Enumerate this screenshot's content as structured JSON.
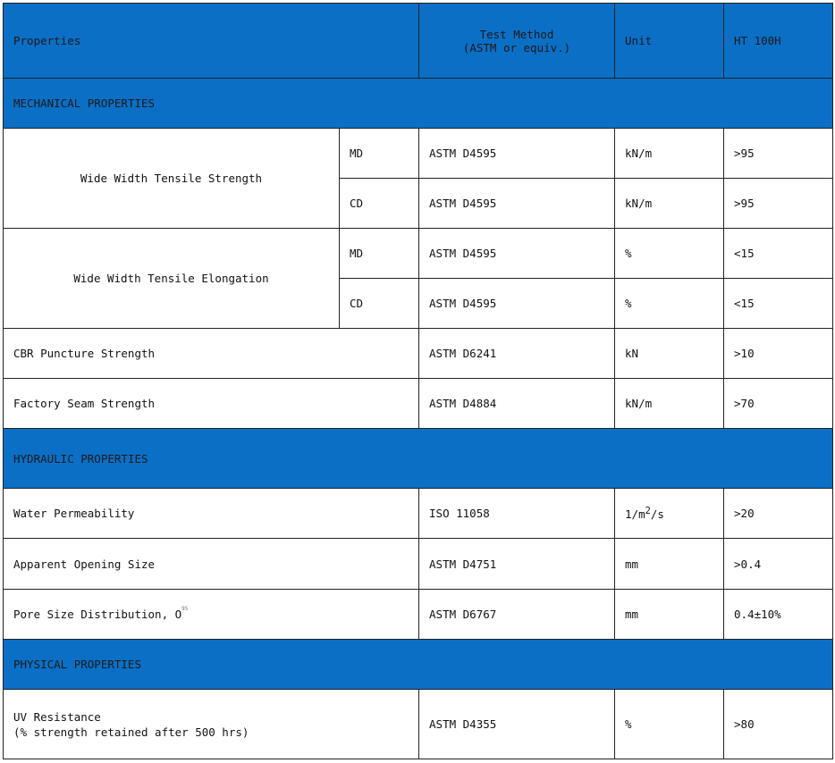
{
  "header": {
    "properties": "Properties",
    "test_method_line1": "Test Method",
    "test_method_line2": "(ASTM or equiv.)",
    "unit": "Unit",
    "product": "HT 100H"
  },
  "sections": {
    "mechanical": "MECHANICAL PROPERTIES",
    "hydraulic": "HYDRAULIC PROPERTIES",
    "physical": "PHYSICAL PROPERTIES"
  },
  "tensile_strength": {
    "label": "Wide Width Tensile Strength",
    "md": {
      "dir": "MD",
      "method": "ASTM D4595",
      "unit": "kN/m",
      "value": ">95"
    },
    "cd": {
      "dir": "CD",
      "method": "ASTM D4595",
      "unit": "kN/m",
      "value": ">95"
    }
  },
  "tensile_elongation": {
    "label": "Wide Width Tensile Elongation",
    "md": {
      "dir": "MD",
      "method": "ASTM D4595",
      "unit": "%",
      "value": "<15"
    },
    "cd": {
      "dir": "CD",
      "method": "ASTM D4595",
      "unit": "%",
      "value": "<15"
    }
  },
  "cbr": {
    "label": "CBR Puncture Strength",
    "method": "ASTM D6241",
    "unit": "kN",
    "value": ">10"
  },
  "seam": {
    "label": "Factory Seam Strength",
    "method": "ASTM D4884",
    "unit": "kN/m",
    "value": ">70"
  },
  "permeability": {
    "label": "Water Permeability",
    "method": "ISO 11058",
    "unit_base": "1/m",
    "unit_sup": "2",
    "unit_tail": "/s",
    "value": ">20"
  },
  "aos": {
    "label": "Apparent Opening Size",
    "method": "ASTM D4751",
    "unit": "mm",
    "value": ">0.4"
  },
  "pore": {
    "label": "Pore Size Distribution, O",
    "label_sup": "95",
    "method": "ASTM D6767",
    "unit": "mm",
    "value": "0.4±10%"
  },
  "uv": {
    "label_line1": "UV Resistance",
    "label_line2": "(% strength retained after 500 hrs)",
    "method": "ASTM D4355",
    "unit": "%",
    "value": ">80"
  }
}
